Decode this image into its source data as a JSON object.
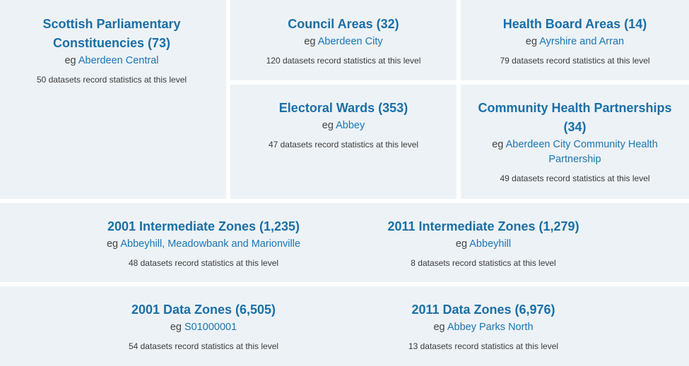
{
  "eg_prefix": "eg",
  "tiles": {
    "spc": {
      "title": "Scottish Parliamentary Constituencies (73)",
      "example": "Aberdeen Central",
      "stats": "50 datasets record statistics at this level"
    },
    "ca": {
      "title": "Council Areas (32)",
      "example": "Aberdeen City",
      "stats": "120 datasets record statistics at this level"
    },
    "hba": {
      "title": "Health Board Areas (14)",
      "example": "Ayrshire and Arran",
      "stats": "79 datasets record statistics at this level"
    },
    "ew": {
      "title": "Electoral Wards (353)",
      "example": "Abbey",
      "stats": "47 datasets record statistics at this level"
    },
    "chp": {
      "title": "Community Health Partnerships (34)",
      "example": "Aberdeen City Community Health Partnership",
      "stats": "49 datasets record statistics at this level"
    },
    "iz2001": {
      "title": "2001 Intermediate Zones (1,235)",
      "example": "Abbeyhill, Meadowbank and Marionville",
      "stats": "48 datasets record statistics at this level"
    },
    "iz2011": {
      "title": "2011 Intermediate Zones (1,279)",
      "example": "Abbeyhill",
      "stats": "8 datasets record statistics at this level"
    },
    "dz2001": {
      "title": "2001 Data Zones (6,505)",
      "example": "S01000001",
      "stats": "54 datasets record statistics at this level"
    },
    "dz2011": {
      "title": "2011 Data Zones (6,976)",
      "example": "Abbey Parks North",
      "stats": "13 datasets record statistics at this level"
    }
  }
}
